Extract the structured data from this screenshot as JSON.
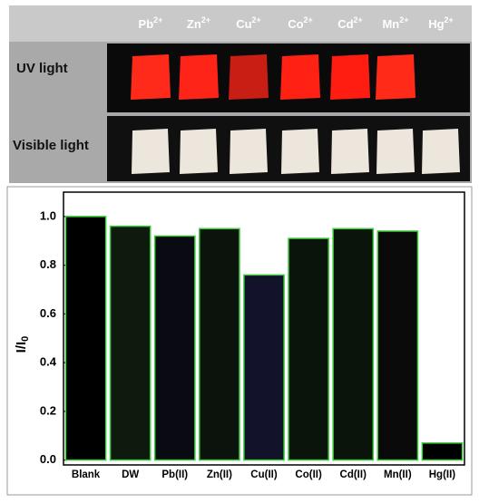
{
  "ions": [
    {
      "symbol": "Pb",
      "charge": "2+"
    },
    {
      "symbol": "Zn",
      "charge": "2+"
    },
    {
      "symbol": "Cu",
      "charge": "2+"
    },
    {
      "symbol": "Co",
      "charge": "2+"
    },
    {
      "symbol": "Cd",
      "charge": "2+"
    },
    {
      "symbol": "Mn",
      "charge": "2+"
    },
    {
      "symbol": "Hg",
      "charge": "2+"
    }
  ],
  "rows": [
    "UV light",
    "Visible light"
  ],
  "chart_data": {
    "type": "bar",
    "ylabel": "I/I",
    "ylabel_subscript": "0",
    "categories": [
      "Blank",
      "DW",
      "Pb(II)",
      "Zn(II)",
      "Cu(II)",
      "Co(II)",
      "Cd(II)",
      "Mn(II)",
      "Hg(II)"
    ],
    "values": [
      1.0,
      0.96,
      0.92,
      0.95,
      0.76,
      0.91,
      0.95,
      0.94,
      0.07
    ],
    "colors": [
      "#000000",
      "#0f1a0f",
      "#0a0a12",
      "#0c120c",
      "#12122a",
      "#0a140a",
      "#0a140a",
      "#0a0a0a",
      "#000000"
    ],
    "edgecolor": "#3ccc3c",
    "ylim": [
      -0.02,
      1.1
    ],
    "yticks": [
      {
        "value": 0,
        "label": "0.0"
      },
      0.2,
      0.4,
      0.6,
      0.8,
      {
        "value": 1,
        "label": "1.0"
      }
    ]
  }
}
